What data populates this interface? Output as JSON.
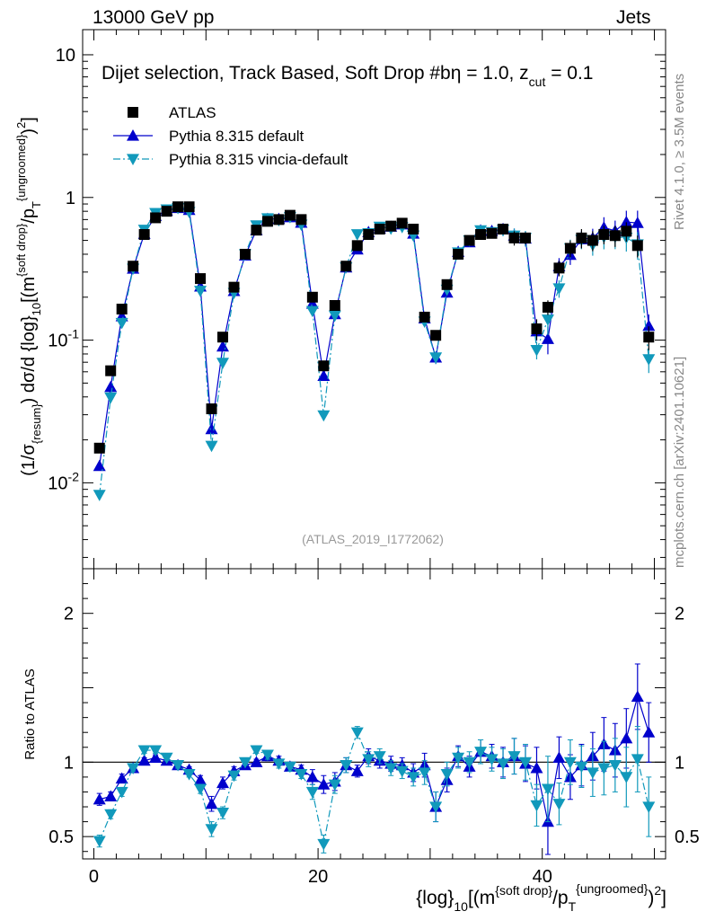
{
  "header": {
    "energy_label": "13000 GeV pp",
    "category_label": "Jets"
  },
  "side_labels": {
    "rivet": "Rivet 4.1.0, ≥ 3.5M events",
    "source": "mcplots.cern.ch [arXiv:2401.10621]"
  },
  "chart_data": {
    "type": "scatter",
    "title": "Dijet selection, Track Based, Soft Drop #bη = 1.0, z_cut = 0.1",
    "title_parts": {
      "main": "Dijet selection, Track Based, Soft Drop #b",
      "eta": "η = 1.0, z",
      "sub": "cut",
      "tail": " = 0.1"
    },
    "analysis_id": "(ATLAS_2019_I1772062)",
    "ylabel": "(1/σ_{resum}) dσ/d {log}_{10}[(m^{soft drop}/p_T^{ungroomed})^2]",
    "ylabel_parts": {
      "p1": "(1/σ",
      "s1": "{resum}",
      "p2": ") dσ/d {log}",
      "s2": "10",
      "p3": "[(m",
      "u1": "{soft drop}",
      "p4": "/p",
      "s3": "T",
      "u2": "{ungroomed}",
      "p5": ")",
      "u3": "2",
      "p6": "]"
    },
    "xlabel": "{log}_{10}[(m^{soft drop}/p_T^{ungroomed})^2]",
    "xlabel_parts": {
      "p1": "{log}",
      "s1": "10",
      "p2": "[(m",
      "u1": "{soft drop}",
      "p3": "/p",
      "s2": "T",
      "u2": "{ungroomed}",
      "p4": ")",
      "u3": "2",
      "p5": "]"
    },
    "ratio_ylabel": "Ratio to ATLAS",
    "xlim": [
      -1,
      51
    ],
    "ylim": [
      0.0025,
      15
    ],
    "yscale": "log",
    "ratio_ylim": [
      0.35,
      2.3
    ],
    "x_ticks": [
      0,
      20,
      40
    ],
    "y_ticks": [
      {
        "value": 0.01,
        "base": "10",
        "exp": "-2"
      },
      {
        "value": 0.1,
        "base": "10",
        "exp": "-1"
      },
      {
        "value": 1,
        "base": "1",
        "exp": ""
      },
      {
        "value": 10,
        "base": "10",
        "exp": ""
      }
    ],
    "ratio_ticks": [
      {
        "value": 0.5,
        "label": "0.5"
      },
      {
        "value": 1,
        "label": "1"
      },
      {
        "value": 2,
        "label": "2"
      }
    ],
    "x": [
      0.5,
      1.5,
      2.5,
      3.5,
      4.5,
      5.5,
      6.5,
      7.5,
      8.5,
      9.5,
      10.5,
      11.5,
      12.5,
      13.5,
      14.5,
      15.5,
      16.5,
      17.5,
      18.5,
      19.5,
      20.5,
      21.5,
      22.5,
      23.5,
      24.5,
      25.5,
      26.5,
      27.5,
      28.5,
      29.5,
      30.5,
      31.5,
      32.5,
      33.5,
      34.5,
      35.5,
      36.5,
      37.5,
      38.5,
      39.5,
      40.5,
      41.5,
      42.5,
      43.5,
      44.5,
      45.5,
      46.5,
      47.5,
      48.5,
      49.5
    ],
    "series": [
      {
        "name": "ATLAS",
        "marker": "square",
        "color": "#000000",
        "values": [
          0.0175,
          0.061,
          0.165,
          0.33,
          0.55,
          0.72,
          0.8,
          0.86,
          0.86,
          0.27,
          0.033,
          0.105,
          0.235,
          0.4,
          0.59,
          0.68,
          0.7,
          0.75,
          0.7,
          0.2,
          0.066,
          0.175,
          0.33,
          0.46,
          0.55,
          0.6,
          0.63,
          0.66,
          0.6,
          0.145,
          0.108,
          0.245,
          0.4,
          0.5,
          0.55,
          0.56,
          0.6,
          0.52,
          0.52,
          0.12,
          0.17,
          0.32,
          0.44,
          0.52,
          0.5,
          0.55,
          0.54,
          0.58,
          0.46,
          0.105
        ],
        "errors": [
          0,
          0,
          0,
          0,
          0,
          0,
          0,
          0,
          0,
          0,
          0,
          0,
          0,
          0,
          0,
          0,
          0,
          0,
          0,
          0,
          0,
          0,
          0,
          0,
          0,
          0,
          0,
          0,
          0,
          0,
          0,
          0,
          0,
          0,
          0,
          0,
          0,
          0.06,
          0.05,
          0.02,
          0.02,
          0.04,
          0.06,
          0.08,
          0.08,
          0.08,
          0.09,
          0.09,
          0.08,
          0.02
        ]
      },
      {
        "name": "Pythia 8.315 default",
        "marker": "triangle-up",
        "color": "#0000cc",
        "line": "solid",
        "ratio": [
          0.75,
          0.77,
          0.89,
          0.96,
          1.01,
          1.03,
          1.01,
          0.98,
          0.95,
          0.88,
          0.72,
          0.86,
          0.94,
          0.98,
          1.0,
          1.04,
          1.01,
          0.97,
          0.95,
          0.9,
          0.85,
          0.87,
          0.98,
          0.94,
          1.04,
          1.01,
          0.99,
          0.98,
          0.93,
          0.98,
          0.7,
          0.88,
          1.04,
          0.97,
          1.07,
          1.04,
          1.0,
          1.04,
          0.99,
          0.96,
          0.6,
          1.03,
          0.9,
          0.98,
          1.04,
          1.12,
          1.08,
          1.16,
          1.44,
          1.2
        ],
        "ratio_err": [
          0.04,
          0.03,
          0.03,
          0.02,
          0.02,
          0.02,
          0.02,
          0.02,
          0.02,
          0.03,
          0.05,
          0.04,
          0.03,
          0.02,
          0.02,
          0.03,
          0.03,
          0.03,
          0.03,
          0.05,
          0.06,
          0.06,
          0.05,
          0.04,
          0.05,
          0.05,
          0.05,
          0.05,
          0.06,
          0.08,
          0.1,
          0.08,
          0.07,
          0.07,
          0.08,
          0.08,
          0.1,
          0.12,
          0.12,
          0.14,
          0.22,
          0.14,
          0.15,
          0.14,
          0.16,
          0.18,
          0.18,
          0.2,
          0.22,
          0.2
        ]
      },
      {
        "name": "Pythia 8.315 vincia-default",
        "marker": "triangle-down",
        "color": "#1199bb",
        "line": "dashdot",
        "ratio": [
          0.47,
          0.65,
          0.8,
          0.96,
          1.08,
          1.08,
          1.03,
          0.98,
          0.92,
          0.82,
          0.55,
          0.66,
          0.91,
          1.0,
          1.08,
          1.05,
          0.99,
          0.97,
          0.92,
          0.8,
          0.45,
          0.85,
          0.98,
          1.2,
          1.02,
          1.04,
          0.96,
          0.94,
          0.9,
          0.93,
          0.7,
          0.92,
          1.03,
          1.0,
          1.07,
          1.02,
          0.99,
          1.04,
          1.0,
          0.71,
          0.82,
          0.72,
          1.0,
          0.97,
          0.93,
          0.96,
          0.98,
          0.9,
          1.02,
          0.7
        ],
        "ratio_err": [
          0.04,
          0.03,
          0.03,
          0.02,
          0.02,
          0.02,
          0.02,
          0.02,
          0.02,
          0.03,
          0.05,
          0.04,
          0.03,
          0.02,
          0.02,
          0.03,
          0.03,
          0.03,
          0.03,
          0.05,
          0.06,
          0.06,
          0.05,
          0.04,
          0.05,
          0.05,
          0.05,
          0.05,
          0.06,
          0.08,
          0.1,
          0.08,
          0.07,
          0.07,
          0.08,
          0.08,
          0.1,
          0.12,
          0.12,
          0.14,
          0.22,
          0.14,
          0.15,
          0.14,
          0.16,
          0.18,
          0.18,
          0.2,
          0.22,
          0.2
        ]
      }
    ],
    "legend": {
      "position": "top-left",
      "entries": [
        "ATLAS",
        "Pythia 8.315 default",
        "Pythia 8.315 vincia-default"
      ]
    }
  }
}
